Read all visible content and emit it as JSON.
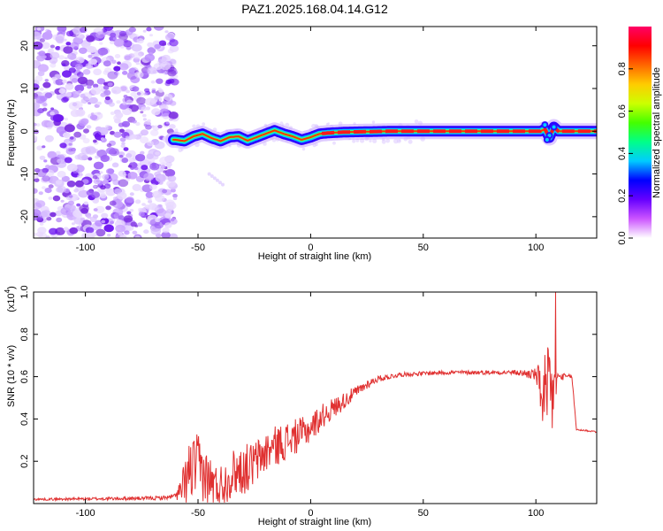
{
  "title": "PAZ1.2025.168.04.14.G12",
  "chart_data": [
    {
      "type": "heatmap",
      "xlabel": "Height of straight line (km)",
      "ylabel": "Frequency (Hz)",
      "xlim": [
        -123,
        127
      ],
      "ylim": [
        -25,
        24.5
      ],
      "xticks": [
        -100,
        -50,
        0,
        50,
        100
      ],
      "yticks": [
        20,
        10,
        0,
        -10,
        -20
      ],
      "ridge": {
        "x": [
          -60,
          -56,
          -52,
          -48,
          -44,
          -40,
          -36,
          -32,
          -28,
          -24,
          -20,
          -16,
          -12,
          -8,
          -4,
          0,
          4,
          8,
          15,
          25,
          35,
          45,
          55,
          70,
          90,
          102,
          104,
          106,
          108,
          110,
          115,
          127
        ],
        "y": [
          -2,
          -2.3,
          -1.2,
          -0.6,
          -1.6,
          -2.3,
          -1.4,
          -1.2,
          -2.2,
          -1.4,
          -0.6,
          0.2,
          -0.6,
          -1.2,
          -2.0,
          -1.4,
          -0.6,
          -0.4,
          -0.2,
          -0.1,
          0,
          0,
          0,
          0,
          0,
          0,
          0.5,
          -1.5,
          1.0,
          0,
          0,
          0
        ]
      },
      "colorbar": {
        "label": "Normalized spectral amplitude",
        "min": 0.0,
        "max": 1.0,
        "ticks": [
          0.0,
          0.2,
          0.4,
          0.6,
          0.8
        ],
        "colors": [
          "#ffffff",
          "#cc55ff",
          "#6600ff",
          "#0000ff",
          "#00ccff",
          "#00ff88",
          "#44ff00",
          "#ccff00",
          "#ffcc00",
          "#ff6600",
          "#ff0000",
          "#ff0066"
        ]
      },
      "grid": false
    },
    {
      "type": "line",
      "xlabel": "Height of straight line (km)",
      "ylabel": "SNR (10 * v/v)",
      "y_multiplier": "(x10",
      "y_multiplier_exp": "4",
      "xlim": [
        -123,
        127
      ],
      "ylim": [
        0,
        1.0
      ],
      "xticks": [
        -100,
        -50,
        0,
        50,
        100
      ],
      "yticks": [
        1.0,
        0.8,
        0.6,
        0.4,
        0.2
      ],
      "color": "#e03030",
      "envelope": {
        "x": [
          -123,
          -70,
          -62,
          -58,
          -56,
          -54,
          -50,
          -46,
          -42,
          -38,
          -34,
          -30,
          -26,
          -22,
          -18,
          -14,
          -10,
          -6,
          -2,
          2,
          6,
          10,
          14,
          18,
          22,
          26,
          30,
          35,
          40,
          50,
          60,
          70,
          80,
          90,
          100,
          102,
          104,
          106,
          108,
          110,
          112,
          116,
          118,
          127
        ],
        "y": [
          0.02,
          0.025,
          0.03,
          0.05,
          0.08,
          0.15,
          0.18,
          0.12,
          0.08,
          0.1,
          0.15,
          0.16,
          0.18,
          0.22,
          0.26,
          0.28,
          0.3,
          0.32,
          0.34,
          0.38,
          0.42,
          0.45,
          0.48,
          0.51,
          0.54,
          0.57,
          0.59,
          0.6,
          0.61,
          0.615,
          0.62,
          0.62,
          0.62,
          0.62,
          0.61,
          0.55,
          0.5,
          0.45,
          0.55,
          0.6,
          0.6,
          0.6,
          0.35,
          0.34
        ]
      },
      "noise": {
        "x": [
          -123,
          -60,
          -56,
          -52,
          -48,
          -40,
          -30,
          -20,
          -10,
          0,
          10,
          20,
          30,
          40,
          60,
          90,
          100,
          104,
          106,
          110,
          118,
          127
        ],
        "amp": [
          0.005,
          0.01,
          0.12,
          0.16,
          0.14,
          0.1,
          0.12,
          0.1,
          0.09,
          0.07,
          0.05,
          0.03,
          0.015,
          0.01,
          0.01,
          0.01,
          0.03,
          0.22,
          0.3,
          0.02,
          0.005,
          0.005
        ]
      },
      "grid": false
    }
  ]
}
